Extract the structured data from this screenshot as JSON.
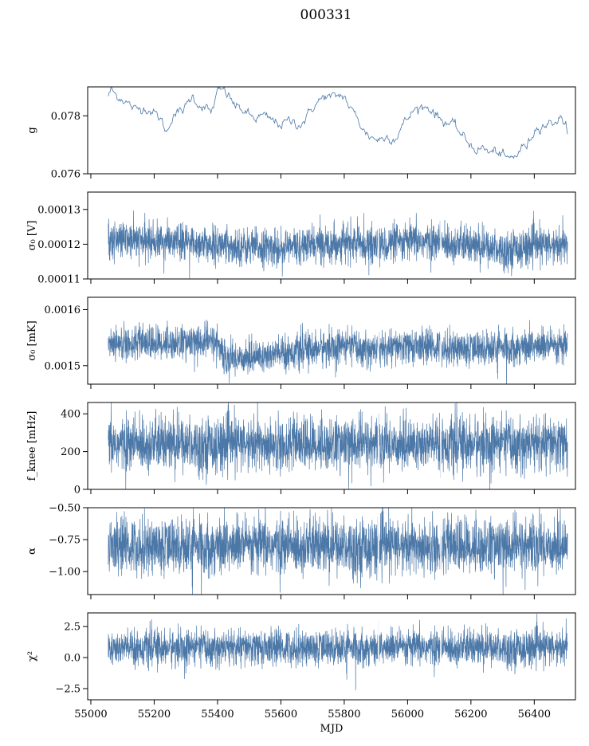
{
  "figure": {
    "title": "000331"
  },
  "chart_data": [
    {
      "type": "line",
      "ylabel_text": "g",
      "ylim": [
        0.076,
        0.079
      ],
      "yticks": [
        0.076,
        0.078
      ],
      "ytick_labels": [
        "0.076",
        "0.078"
      ],
      "xlim": [
        54990,
        56530
      ],
      "xticks": [
        55000,
        55200,
        55400,
        55600,
        55800,
        56000,
        56200,
        56400
      ],
      "color": "#4c78a8",
      "series": [
        {
          "x": [
            55055,
            55065,
            55080,
            55100,
            55120,
            55140,
            55170,
            55200,
            55220,
            55240,
            55260,
            55280,
            55300,
            55320,
            55340,
            55360,
            55380,
            55400,
            55420,
            55440,
            55460,
            55480,
            55500,
            55520,
            55540,
            55560,
            55580,
            55600,
            55620,
            55640,
            55660,
            55680,
            55700,
            55720,
            55740,
            55760,
            55780,
            55800,
            55820,
            55840,
            55860,
            55880,
            55900,
            55920,
            55940,
            55960,
            55980,
            56000,
            56020,
            56040,
            56060,
            56080,
            56100,
            56120,
            56140,
            56160,
            56180,
            56200,
            56220,
            56240,
            56260,
            56280,
            56300,
            56320,
            56340,
            56360,
            56380,
            56400,
            56420,
            56440,
            56460,
            56480,
            56500,
            56505
          ],
          "y": [
            0.0787,
            0.0789,
            0.0787,
            0.0786,
            0.0784,
            0.0782,
            0.0783,
            0.0781,
            0.0779,
            0.0774,
            0.0781,
            0.0781,
            0.0783,
            0.0787,
            0.0784,
            0.0783,
            0.0781,
            0.0788,
            0.0789,
            0.0786,
            0.0783,
            0.0782,
            0.078,
            0.0779,
            0.078,
            0.0779,
            0.0778,
            0.0777,
            0.0778,
            0.0778,
            0.0777,
            0.0779,
            0.0783,
            0.0785,
            0.0787,
            0.0786,
            0.0787,
            0.0787,
            0.0782,
            0.078,
            0.0775,
            0.0773,
            0.0772,
            0.0772,
            0.0773,
            0.0772,
            0.0776,
            0.0779,
            0.0782,
            0.0783,
            0.0783,
            0.0782,
            0.0779,
            0.0778,
            0.0777,
            0.0775,
            0.0772,
            0.077,
            0.0768,
            0.0769,
            0.0767,
            0.0768,
            0.0766,
            0.0765,
            0.0766,
            0.0769,
            0.077,
            0.0775,
            0.0777,
            0.0777,
            0.0778,
            0.0779,
            0.0778,
            0.0774
          ],
          "noise": 0.00018,
          "dense": false
        }
      ]
    },
    {
      "type": "line",
      "ylabel_text": "σ₀ [V]",
      "ylim": [
        0.00011,
        0.000135
      ],
      "yticks": [
        0.00011,
        0.00012,
        0.00013
      ],
      "ytick_labels": [
        "0.00011",
        "0.00012",
        "0.00013"
      ],
      "xlim": [
        54990,
        56530
      ],
      "xticks": [
        55000,
        55200,
        55400,
        55600,
        55800,
        56000,
        56200,
        56400
      ],
      "color": "#4c78a8",
      "series": [
        {
          "x": [
            55055,
            55150,
            55300,
            55400,
            55500,
            55600,
            55700,
            55800,
            55900,
            55960,
            56000,
            56100,
            56200,
            56300,
            56400,
            56505
          ],
          "y": [
            0.0001212,
            0.000121,
            0.0001205,
            0.0001198,
            0.0001192,
            0.000119,
            0.0001198,
            0.0001205,
            0.0001197,
            0.0001202,
            0.0001208,
            0.0001205,
            0.0001196,
            0.0001185,
            0.0001195,
            0.0001196
          ],
          "noise": 4.8e-06,
          "dense": true
        }
      ]
    },
    {
      "type": "line",
      "ylabel_text": "σ₀ [mK]",
      "ylim": [
        0.001467,
        0.001622
      ],
      "yticks": [
        0.0015,
        0.0016
      ],
      "ytick_labels": [
        "0.0015",
        "0.0016"
      ],
      "xlim": [
        54990,
        56530
      ],
      "xticks": [
        55000,
        55200,
        55400,
        55600,
        55800,
        56000,
        56200,
        56400
      ],
      "color": "#4c78a8",
      "series": [
        {
          "x": [
            55055,
            55200,
            55400,
            55420,
            55550,
            55700,
            55800,
            55900,
            56000,
            56100,
            56200,
            56300,
            56400,
            56505
          ],
          "y": [
            0.001542,
            0.00154,
            0.001543,
            0.001512,
            0.001518,
            0.00153,
            0.001535,
            0.001528,
            0.001535,
            0.001533,
            0.00153,
            0.001532,
            0.001535,
            0.001533
          ],
          "noise": 2.8e-05,
          "dense": true
        }
      ]
    },
    {
      "type": "line",
      "ylabel_text": "f_knee [mHz]",
      "ylim": [
        0,
        460
      ],
      "yticks": [
        0,
        200,
        400
      ],
      "ytick_labels": [
        "0",
        "200",
        "400"
      ],
      "xlim": [
        54990,
        56530
      ],
      "xticks": [
        55000,
        55200,
        55400,
        55600,
        55800,
        56000,
        56200,
        56400
      ],
      "color": "#4c78a8",
      "series": [
        {
          "x": [
            55055,
            56505
          ],
          "y": [
            240,
            240
          ],
          "noise": 130,
          "dense": true
        }
      ]
    },
    {
      "type": "line",
      "ylabel_text": "α",
      "ylim": [
        -1.18,
        -0.5
      ],
      "yticks": [
        -1.0,
        -0.75,
        -0.5
      ],
      "ytick_labels": [
        "−1.00",
        "−0.75",
        "−0.50"
      ],
      "xlim": [
        54990,
        56530
      ],
      "xticks": [
        55000,
        55200,
        55400,
        55600,
        55800,
        56000,
        56200,
        56400
      ],
      "color": "#4c78a8",
      "series": [
        {
          "x": [
            55055,
            56505
          ],
          "y": [
            -0.8,
            -0.8
          ],
          "noise": 0.2,
          "dense": true
        }
      ]
    },
    {
      "type": "line",
      "ylabel_text": "χ²",
      "ylim": [
        -3.4,
        3.6
      ],
      "yticks": [
        -2.5,
        0.0,
        2.5
      ],
      "ytick_labels": [
        "−2.5",
        "0.0",
        "2.5"
      ],
      "xlim": [
        54990,
        56530
      ],
      "xticks": [
        55000,
        55200,
        55400,
        55600,
        55800,
        56000,
        56200,
        56400
      ],
      "xtick_labels": [
        "55000",
        "55200",
        "55400",
        "55600",
        "55800",
        "56000",
        "56200",
        "56400"
      ],
      "xlabel": "MJD",
      "color": "#4c78a8",
      "series": [
        {
          "x": [
            55055,
            56505
          ],
          "y": [
            0.8,
            0.8
          ],
          "noise": 1.3,
          "dense": true
        }
      ]
    }
  ]
}
